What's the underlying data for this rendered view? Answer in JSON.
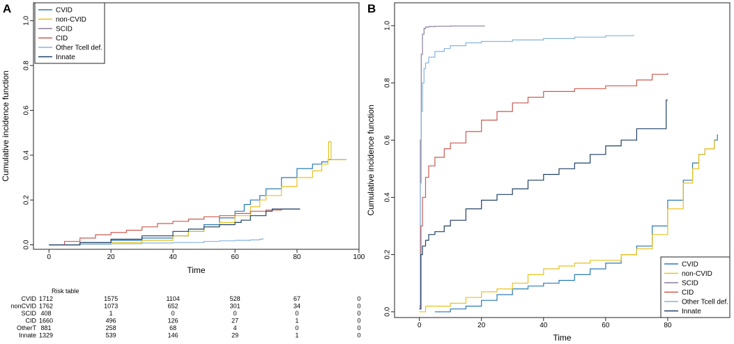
{
  "colors": {
    "CVID": "#2878b5",
    "non-CVID": "#e8c21b",
    "SCID": "#8c7c9c",
    "CID": "#c95a4f",
    "Other Tcell def.": "#86b3df",
    "Innate": "#1f3f66"
  },
  "chart_data": [
    {
      "panel_label": "A",
      "type": "line",
      "step": true,
      "xlabel": "Time",
      "ylabel": "Cumulative incidence function",
      "xlim": [
        -5,
        100
      ],
      "ylim": [
        -0.02,
        1.08
      ],
      "xticks": [
        "0",
        "20",
        "40",
        "60",
        "80",
        "100"
      ],
      "yticks": [
        "0.0",
        "0.2",
        "0.4",
        "0.6",
        "0.8",
        "1.0"
      ],
      "legend_position": "top-left",
      "legend": [
        "CVID",
        "non-CVID",
        "SCID",
        "CID",
        "Other Tcell def.",
        "Innate"
      ],
      "series": [
        {
          "name": "CVID",
          "x": [
            0,
            10,
            20,
            30,
            40,
            45,
            50,
            55,
            60,
            63,
            65,
            68,
            70,
            75,
            80,
            85,
            88,
            90,
            92,
            96
          ],
          "y": [
            0,
            0.01,
            0.02,
            0.03,
            0.04,
            0.06,
            0.09,
            0.12,
            0.15,
            0.18,
            0.2,
            0.22,
            0.25,
            0.3,
            0.34,
            0.36,
            0.37,
            0.38,
            0.38,
            0.38
          ]
        },
        {
          "name": "non-CVID",
          "x": [
            0,
            10,
            20,
            30,
            40,
            45,
            50,
            55,
            60,
            65,
            68,
            70,
            75,
            80,
            85,
            88,
            90,
            90.2,
            91,
            96
          ],
          "y": [
            0,
            0.005,
            0.01,
            0.02,
            0.04,
            0.06,
            0.08,
            0.1,
            0.13,
            0.17,
            0.2,
            0.22,
            0.26,
            0.3,
            0.33,
            0.36,
            0.38,
            0.46,
            0.38,
            0.38
          ]
        },
        {
          "name": "Other Tcell def.",
          "x": [
            0,
            10,
            20,
            30,
            40,
            50,
            55,
            60,
            65,
            68,
            69
          ],
          "y": [
            0,
            0.002,
            0.005,
            0.008,
            0.01,
            0.015,
            0.018,
            0.02,
            0.022,
            0.025,
            0.03
          ]
        },
        {
          "name": "CID",
          "x": [
            0,
            5,
            10,
            15,
            20,
            25,
            30,
            35,
            40,
            45,
            50,
            55,
            60,
            65,
            70,
            75,
            80,
            81
          ],
          "y": [
            0,
            0.015,
            0.03,
            0.045,
            0.055,
            0.065,
            0.08,
            0.095,
            0.105,
            0.115,
            0.125,
            0.13,
            0.14,
            0.15,
            0.155,
            0.16,
            0.16,
            0.16
          ]
        },
        {
          "name": "Innate",
          "x": [
            0,
            10,
            20,
            30,
            40,
            45,
            50,
            55,
            60,
            62,
            65,
            70,
            72,
            75,
            80,
            81
          ],
          "y": [
            0,
            0.01,
            0.025,
            0.04,
            0.06,
            0.07,
            0.08,
            0.09,
            0.1,
            0.11,
            0.13,
            0.15,
            0.16,
            0.16,
            0.16,
            0.16
          ]
        }
      ],
      "risk_table": {
        "title": "Risk table",
        "rows": [
          {
            "label": "CVID",
            "values": [
              "1712",
              "1575",
              "1104",
              "528",
              "67",
              "0"
            ]
          },
          {
            "label": "nonCVID",
            "values": [
              "1762",
              "1073",
              "652",
              "301",
              "34",
              "0"
            ]
          },
          {
            "label": "SCID",
            "values": [
              "408",
              "1",
              "0",
              "0",
              "0",
              "0"
            ]
          },
          {
            "label": "CID",
            "values": [
              "1660",
              "496",
              "126",
              "27",
              "1",
              "0"
            ]
          },
          {
            "label": "OtherT",
            "values": [
              "881",
              "258",
              "68",
              "4",
              "0",
              "0"
            ]
          },
          {
            "label": "Innate",
            "values": [
              "1329",
              "539",
              "146",
              "29",
              "1",
              "0"
            ]
          }
        ]
      }
    },
    {
      "panel_label": "B",
      "type": "line",
      "step": true,
      "xlabel": "Time",
      "ylabel": "Cumulative incidence function",
      "xlim": [
        -8,
        100
      ],
      "ylim": [
        -0.02,
        1.08
      ],
      "xticks": [
        "0",
        "20",
        "40",
        "60",
        "80"
      ],
      "yticks": [
        "0.0",
        "0.2",
        "0.4",
        "0.6",
        "0.8",
        "1.0"
      ],
      "legend_position": "bottom-right",
      "legend": [
        "CVID",
        "non-CVID",
        "SCID",
        "CID",
        "Other Tcell def.",
        "Innate"
      ],
      "series": [
        {
          "name": "SCID",
          "x": [
            0,
            0.3,
            0.6,
            1,
            1.5,
            2,
            3,
            5,
            10,
            21
          ],
          "y": [
            0.01,
            0.6,
            0.9,
            0.97,
            0.99,
            0.995,
            0.997,
            0.998,
            0.999,
            1.0
          ]
        },
        {
          "name": "Other Tcell def.",
          "x": [
            0,
            0.3,
            0.6,
            1,
            1.5,
            2,
            3,
            5,
            8,
            10,
            15,
            20,
            30,
            40,
            50,
            60,
            69
          ],
          "y": [
            0.02,
            0.45,
            0.7,
            0.8,
            0.85,
            0.87,
            0.89,
            0.91,
            0.92,
            0.93,
            0.94,
            0.945,
            0.95,
            0.955,
            0.96,
            0.965,
            0.968
          ]
        },
        {
          "name": "CID",
          "x": [
            0,
            0.5,
            1,
            2,
            3,
            5,
            8,
            10,
            15,
            20,
            25,
            30,
            35,
            40,
            50,
            60,
            70,
            75,
            80
          ],
          "y": [
            0.02,
            0.3,
            0.4,
            0.47,
            0.51,
            0.54,
            0.57,
            0.59,
            0.63,
            0.67,
            0.7,
            0.73,
            0.75,
            0.77,
            0.78,
            0.79,
            0.81,
            0.83,
            0.835
          ]
        },
        {
          "name": "Innate",
          "x": [
            0,
            0.5,
            1,
            2,
            3,
            5,
            8,
            10,
            15,
            20,
            25,
            30,
            35,
            40,
            45,
            50,
            55,
            60,
            65,
            70,
            75,
            79,
            79.5,
            80
          ],
          "y": [
            0.01,
            0.2,
            0.23,
            0.25,
            0.27,
            0.28,
            0.3,
            0.32,
            0.36,
            0.39,
            0.41,
            0.43,
            0.46,
            0.48,
            0.5,
            0.52,
            0.55,
            0.58,
            0.6,
            0.64,
            0.64,
            0.64,
            0.74,
            0.74
          ]
        },
        {
          "name": "CVID",
          "x": [
            5,
            10,
            15,
            20,
            25,
            30,
            35,
            40,
            45,
            50,
            55,
            60,
            65,
            70,
            75,
            80,
            85,
            88,
            90,
            92,
            95,
            96
          ],
          "y": [
            0.0,
            0.01,
            0.02,
            0.04,
            0.06,
            0.08,
            0.09,
            0.1,
            0.11,
            0.13,
            0.15,
            0.17,
            0.2,
            0.23,
            0.3,
            0.39,
            0.46,
            0.52,
            0.55,
            0.57,
            0.6,
            0.62
          ]
        },
        {
          "name": "non-CVID",
          "x": [
            0,
            2,
            5,
            10,
            15,
            20,
            25,
            30,
            35,
            40,
            45,
            50,
            55,
            60,
            65,
            70,
            75,
            80,
            85,
            88,
            90,
            92,
            95
          ],
          "y": [
            0.0,
            0.02,
            0.02,
            0.03,
            0.05,
            0.07,
            0.08,
            0.1,
            0.13,
            0.15,
            0.16,
            0.17,
            0.18,
            0.18,
            0.2,
            0.22,
            0.27,
            0.36,
            0.45,
            0.5,
            0.55,
            0.57,
            0.6
          ]
        }
      ]
    }
  ]
}
